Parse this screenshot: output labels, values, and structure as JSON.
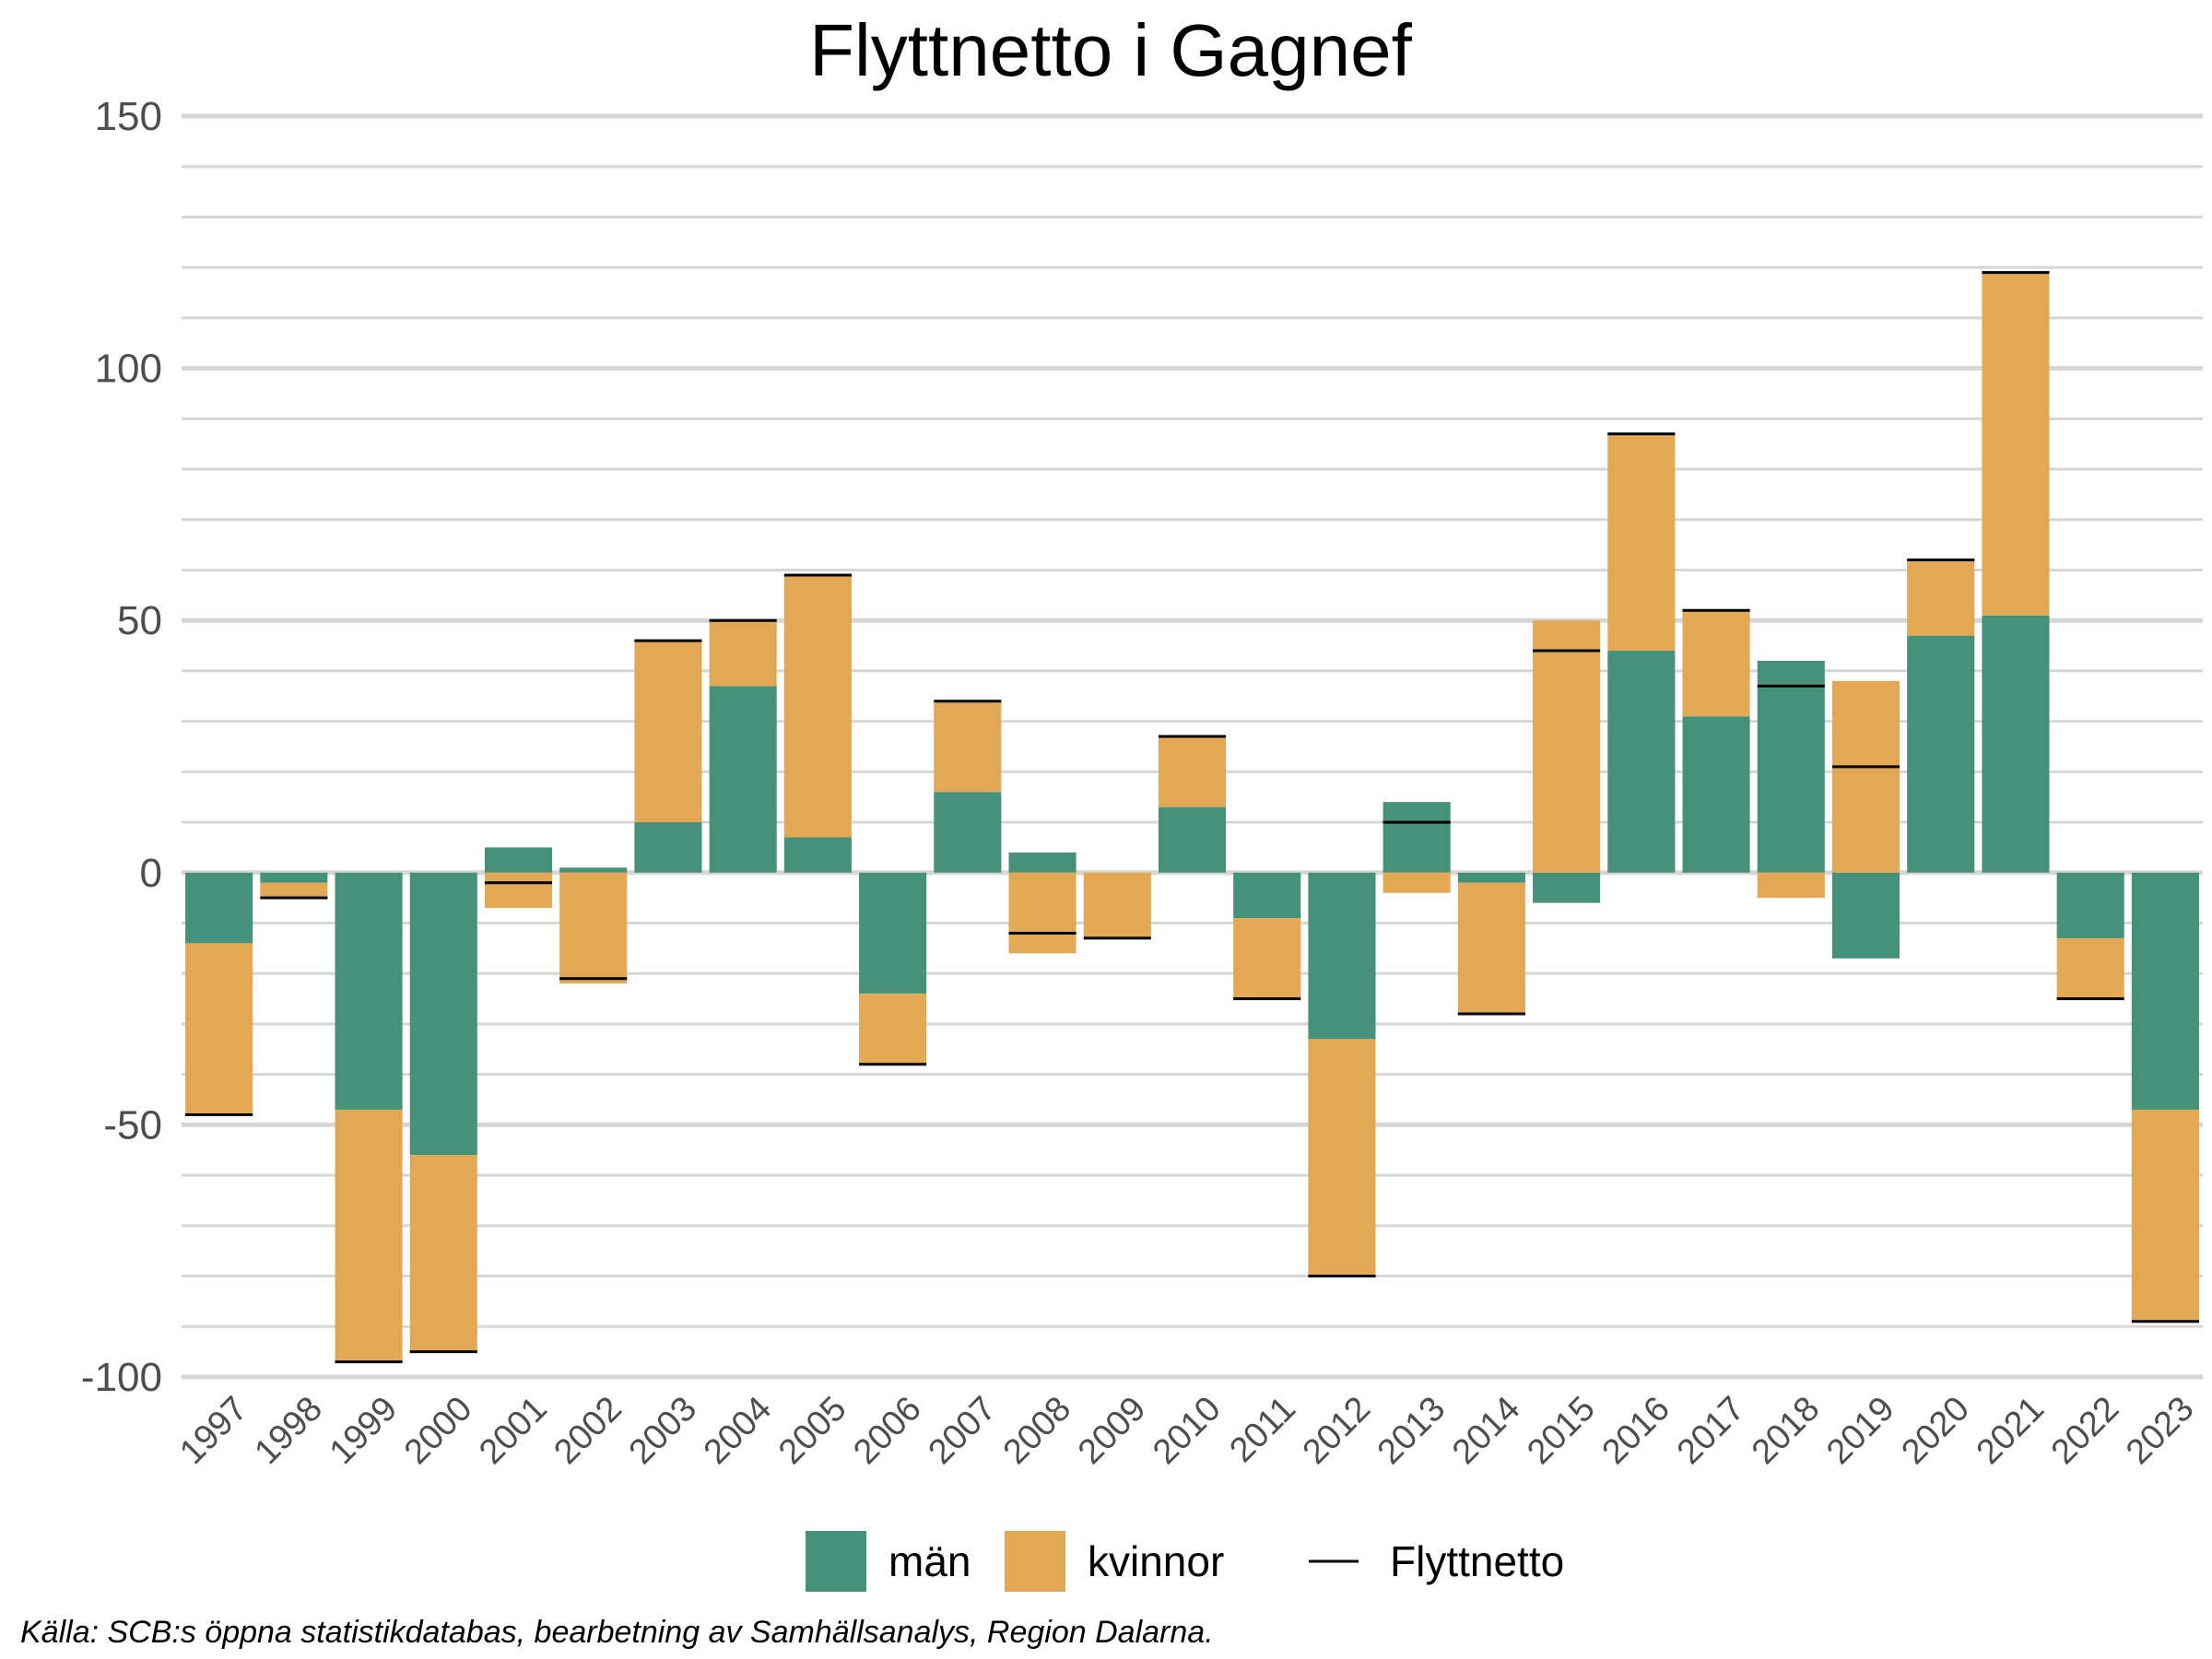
{
  "chart_data": {
    "type": "bar",
    "title": "Flyttnetto i Gagnef",
    "xlabel": "",
    "ylabel": "",
    "ylim": [
      -100,
      150
    ],
    "y_ticks": [
      -100,
      -50,
      0,
      50,
      100,
      150
    ],
    "y_tick_labels": [
      "-100",
      "-50",
      "0",
      "50",
      "100",
      "150"
    ],
    "grid": true,
    "stacked": true,
    "categories": [
      "1997",
      "1998",
      "1999",
      "2000",
      "2001",
      "2002",
      "2003",
      "2004",
      "2005",
      "2006",
      "2007",
      "2008",
      "2009",
      "2010",
      "2011",
      "2012",
      "2013",
      "2014",
      "2015",
      "2016",
      "2017",
      "2018",
      "2019",
      "2020",
      "2021",
      "2022",
      "2023"
    ],
    "series": [
      {
        "name": "män",
        "color": "#45917a",
        "values": [
          -14,
          -2,
          -47,
          -56,
          5,
          1,
          10,
          37,
          7,
          -24,
          16,
          4,
          0,
          13,
          -9,
          -33,
          14,
          -2,
          -6,
          44,
          31,
          42,
          -17,
          47,
          51,
          -13,
          -47
        ]
      },
      {
        "name": "kvinnor",
        "color": "#e2a855",
        "values": [
          -34,
          -3,
          -50,
          -39,
          -7,
          -22,
          36,
          13,
          52,
          -14,
          18,
          -16,
          -13,
          14,
          -16,
          -47,
          -4,
          -26,
          50,
          43,
          21,
          -5,
          38,
          15,
          68,
          -12,
          -42
        ]
      }
    ],
    "line_series": {
      "name": "Flyttnetto",
      "color": "#000000",
      "values": [
        -48,
        -5,
        -97,
        -95,
        -2,
        -21,
        46,
        50,
        59,
        -38,
        34,
        -12,
        -13,
        27,
        -25,
        -80,
        10,
        -28,
        44,
        87,
        52,
        37,
        21,
        62,
        119,
        -25,
        -89
      ]
    },
    "legend_position": "bottom",
    "caption": "Källa: SCB:s öppna statistikdatabas, bearbetning av Samhällsanalys, Region Dalarna."
  }
}
